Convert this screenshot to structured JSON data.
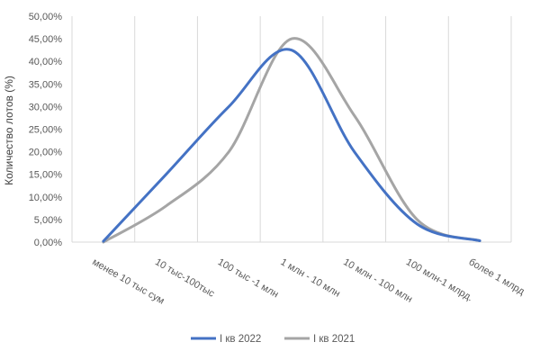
{
  "chart_data": {
    "type": "line",
    "smooth": true,
    "categories": [
      "менее  10 тыс сум",
      "10 тыс-100тыс",
      "100 тыс -1 млн",
      "1 млн - 10 млн",
      "10 млн - 100 млн",
      "100 млн-1 млрд.",
      "более  1 млрд"
    ],
    "series": [
      {
        "name": "I кв 2022",
        "color": "#4472C4",
        "values": [
          0.2,
          15.0,
          30.0,
          42.5,
          20.0,
          4.0,
          0.3
        ]
      },
      {
        "name": "I кв 2021",
        "color": "#A5A5A5",
        "values": [
          0.0,
          8.0,
          20.0,
          45.0,
          28.0,
          5.0,
          0.3
        ]
      }
    ],
    "ylabel": "Количество лотов (%)",
    "ylim": [
      0,
      50
    ],
    "yticks": [
      "0,00%",
      "5,00%",
      "10,00%",
      "15,00%",
      "20,00%",
      "25,00%",
      "30,00%",
      "35,00%",
      "40,00%",
      "45,00%",
      "50,00%"
    ],
    "grid": "vertical",
    "legend": "bottom"
  }
}
